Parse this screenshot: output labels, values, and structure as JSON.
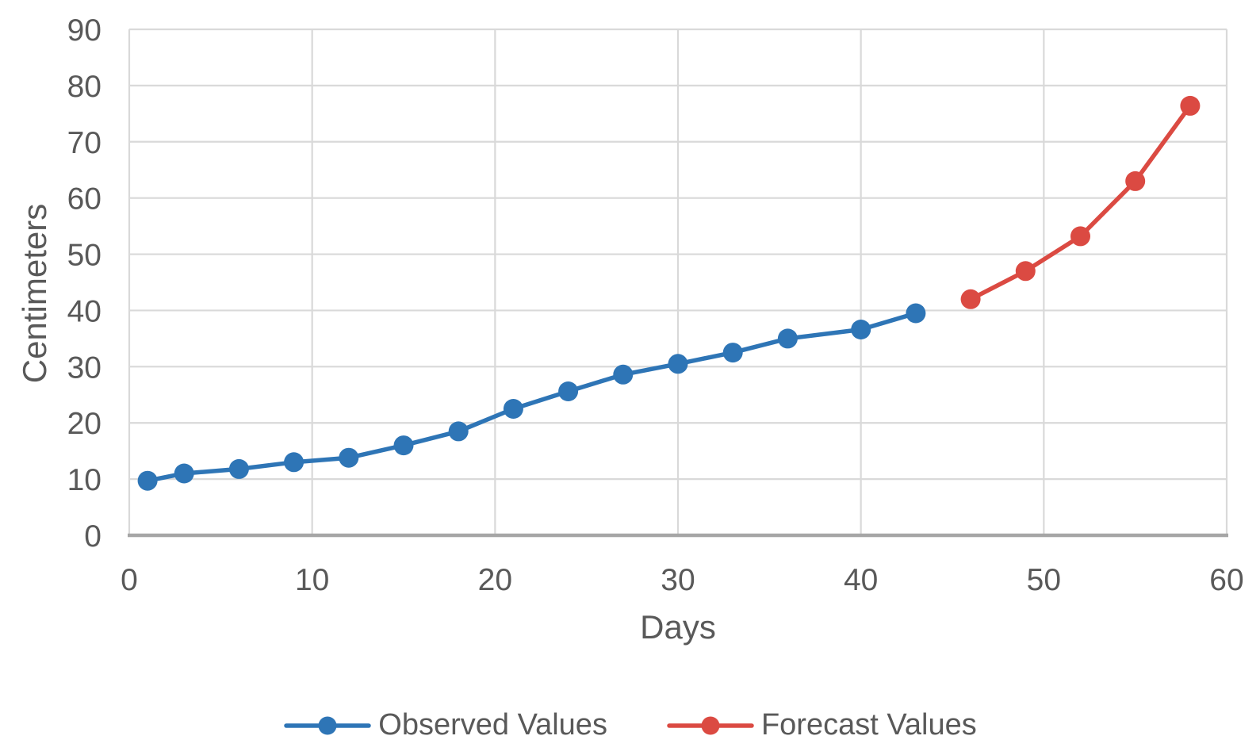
{
  "figure": {
    "background": "#FFFFFF"
  },
  "chart_data": {
    "type": "line",
    "title": "",
    "xlabel": "Days",
    "ylabel": "Centimeters",
    "xlim": [
      0,
      60
    ],
    "ylim": [
      0,
      90
    ],
    "xticks": [
      0,
      10,
      20,
      30,
      40,
      50,
      60
    ],
    "yticks": [
      0,
      10,
      20,
      30,
      40,
      50,
      60,
      70,
      80,
      90
    ],
    "grid": true,
    "legend_position": "bottom-center",
    "colors": {
      "grid": "#D9D9D9",
      "axis": "#A6A6A6",
      "text": "#595959",
      "background": "#FFFFFF"
    },
    "series": [
      {
        "name": "Observed Values",
        "color": "#2E75B6",
        "x": [
          1,
          3,
          6,
          9,
          12,
          15,
          18,
          21,
          24,
          27,
          30,
          33,
          36,
          40,
          43
        ],
        "y": [
          9.7,
          11.0,
          11.8,
          13.0,
          13.8,
          16.0,
          18.5,
          22.5,
          25.6,
          28.6,
          30.5,
          32.5,
          35.0,
          36.6,
          39.5
        ]
      },
      {
        "name": "Forecast Values",
        "color": "#DB4A42",
        "x": [
          46,
          49,
          52,
          55,
          58
        ],
        "y": [
          42.0,
          47.0,
          53.2,
          63.0,
          76.4
        ]
      }
    ]
  }
}
